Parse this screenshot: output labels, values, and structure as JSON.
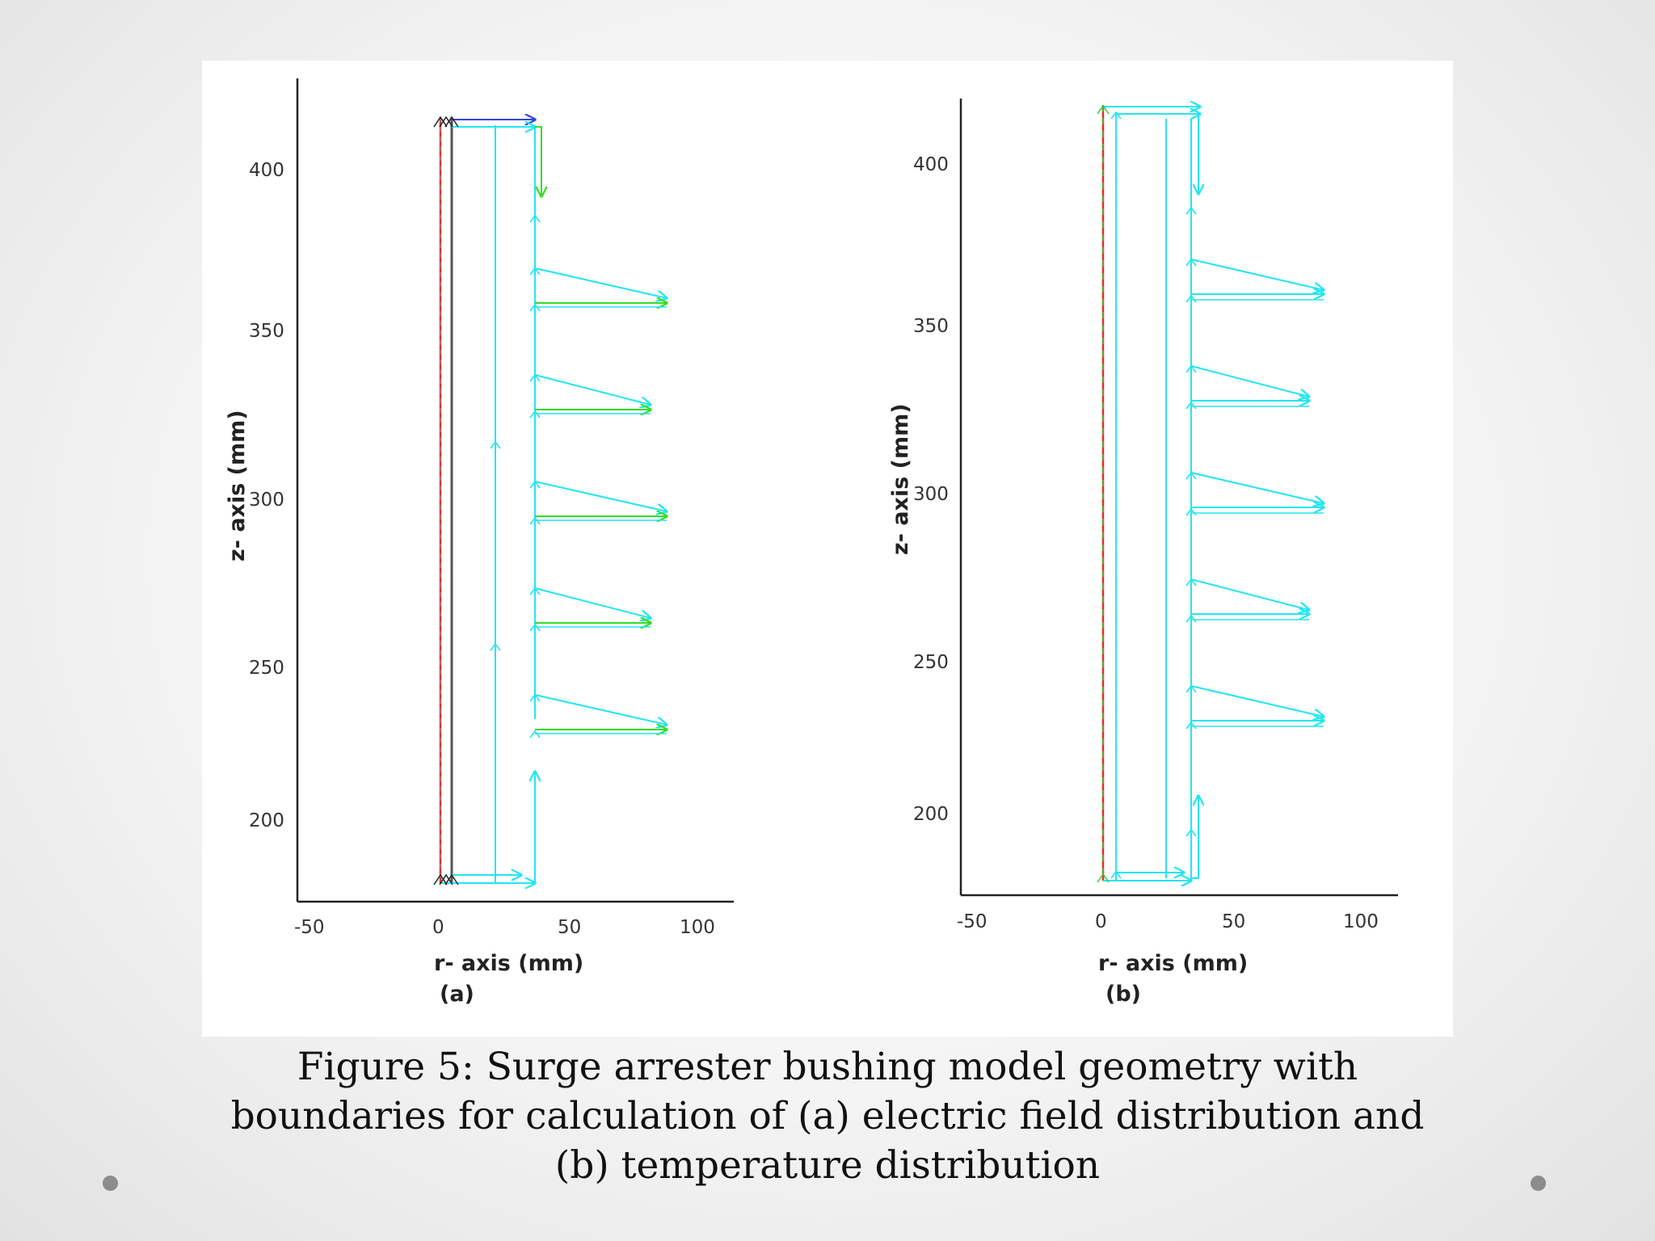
{
  "panels": [
    {
      "id": "a",
      "ylabel": "z- axis (mm)",
      "xlabel": "r- axis (mm)",
      "sublabel": "(a)",
      "xticks": [
        "-50",
        "0",
        "50",
        "100"
      ],
      "yticks": [
        "200",
        "250",
        "300",
        "350",
        "400"
      ],
      "axis_color": "#222222",
      "boundary_colors": {
        "symmetry": "#e03030",
        "electrode": "#555555",
        "surface": "#22e6f0",
        "field": "#33dd22",
        "top": "#3344dd"
      }
    },
    {
      "id": "b",
      "ylabel": "z- axis (mm)",
      "xlabel": "r- axis (mm)",
      "sublabel": "(b)",
      "xticks": [
        "-50",
        "0",
        "50",
        "100"
      ],
      "yticks": [
        "200",
        "250",
        "300",
        "350",
        "400"
      ],
      "axis_color": "#222222",
      "boundary_colors": {
        "symmetry": "#e03030",
        "axis": "#33cc33",
        "surface": "#22e6f0"
      }
    }
  ],
  "caption": {
    "line1": "Figure 5: Surge arrester bushing model geometry with",
    "line2": "boundaries for calculation of (a) electric field distribution and",
    "line3": "(b) temperature distribution"
  },
  "colors": {
    "page_bg": "#efefef",
    "dot": "#8c8c8c"
  }
}
